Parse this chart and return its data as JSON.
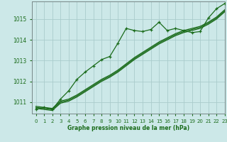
{
  "title": "Graphe pression niveau de la mer (hPa)",
  "background_color": "#cce8e8",
  "grid_color": "#aacccc",
  "line_color": "#1a6b1a",
  "text_color": "#1a6b1a",
  "xlim": [
    -0.5,
    23
  ],
  "ylim": [
    1010.45,
    1015.85
  ],
  "yticks": [
    1011,
    1012,
    1013,
    1014,
    1015
  ],
  "xticks": [
    0,
    1,
    2,
    3,
    4,
    5,
    6,
    7,
    8,
    9,
    10,
    11,
    12,
    13,
    14,
    15,
    16,
    17,
    18,
    19,
    20,
    21,
    22,
    23
  ],
  "line1_x": [
    0,
    1,
    2,
    3,
    4,
    5,
    6,
    7,
    8,
    9,
    10,
    11,
    12,
    13,
    14,
    15,
    16,
    17,
    18,
    19,
    20,
    21,
    22,
    23
  ],
  "line1_y": [
    1010.65,
    1010.75,
    1010.65,
    1011.15,
    1011.55,
    1012.1,
    1012.45,
    1012.75,
    1013.05,
    1013.2,
    1013.85,
    1014.55,
    1014.45,
    1014.4,
    1014.5,
    1014.85,
    1014.45,
    1014.55,
    1014.45,
    1014.35,
    1014.4,
    1015.05,
    1015.5,
    1015.75
  ],
  "line2_x": [
    0,
    1,
    2,
    3,
    4,
    5,
    6,
    7,
    8,
    9,
    10,
    11,
    12,
    13,
    14,
    15,
    16,
    17,
    18,
    19,
    20,
    21,
    22,
    23
  ],
  "line2_y": [
    1010.8,
    1010.75,
    1010.7,
    1011.05,
    1011.15,
    1011.35,
    1011.6,
    1011.85,
    1012.1,
    1012.3,
    1012.55,
    1012.85,
    1013.15,
    1013.4,
    1013.65,
    1013.9,
    1014.1,
    1014.3,
    1014.45,
    1014.55,
    1014.65,
    1014.85,
    1015.1,
    1015.45
  ],
  "line3_x": [
    0,
    1,
    2,
    3,
    4,
    5,
    6,
    7,
    8,
    9,
    10,
    11,
    12,
    13,
    14,
    15,
    16,
    17,
    18,
    19,
    20,
    21,
    22,
    23
  ],
  "line3_y": [
    1010.75,
    1010.7,
    1010.65,
    1011.0,
    1011.1,
    1011.3,
    1011.55,
    1011.8,
    1012.05,
    1012.25,
    1012.5,
    1012.8,
    1013.1,
    1013.35,
    1013.6,
    1013.85,
    1014.05,
    1014.25,
    1014.4,
    1014.5,
    1014.6,
    1014.8,
    1015.05,
    1015.4
  ],
  "line4_x": [
    0,
    1,
    2,
    3,
    4,
    5,
    6,
    7,
    8,
    9,
    10,
    11,
    12,
    13,
    14,
    15,
    16,
    17,
    18,
    19,
    20,
    21,
    22,
    23
  ],
  "line4_y": [
    1010.7,
    1010.65,
    1010.6,
    1010.95,
    1011.05,
    1011.25,
    1011.5,
    1011.75,
    1012.0,
    1012.2,
    1012.45,
    1012.75,
    1013.05,
    1013.3,
    1013.55,
    1013.8,
    1014.0,
    1014.2,
    1014.35,
    1014.45,
    1014.55,
    1014.75,
    1015.0,
    1015.35
  ]
}
